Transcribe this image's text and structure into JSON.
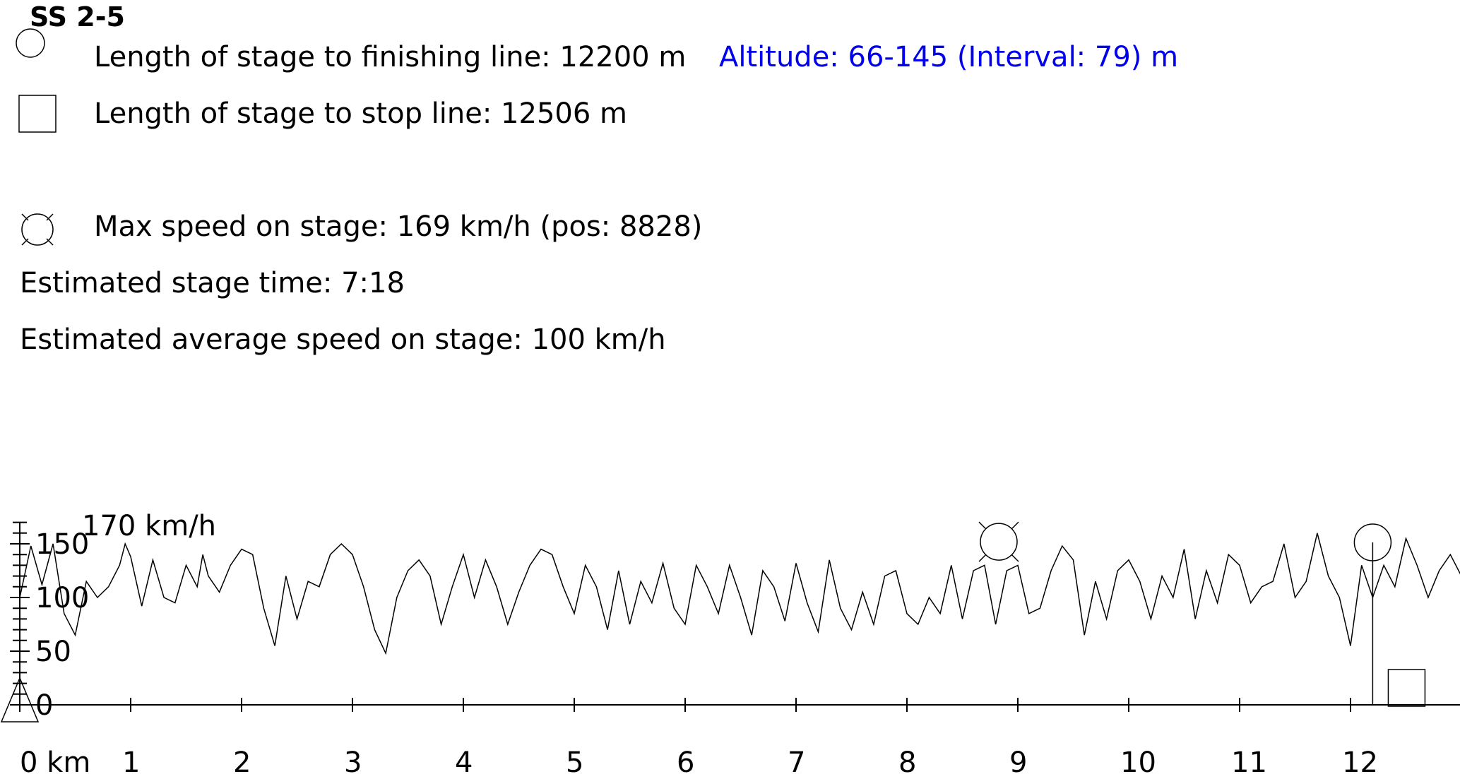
{
  "header": {
    "stage_name": "SS 2-5",
    "finish_length": "Length of stage to finishing line: 12200 m",
    "altitude": "Altitude: 66-145 (Interval: 79) m",
    "stop_length": "Length of stage to stop line: 12506 m",
    "max_speed": "Max speed on stage: 169 km/h (pos: 8828)",
    "stage_time": "Estimated stage time: 7:18",
    "avg_speed": "Estimated average speed on stage: 100 km/h"
  },
  "colors": {
    "altitude_text": "#0000ee",
    "line": "#000000"
  },
  "icons": {
    "finish": "circle-icon",
    "stop": "square-icon",
    "max_speed": "crossed-circle-icon",
    "start": "triangle-icon"
  },
  "chart_data": {
    "type": "line",
    "xlabel": "km",
    "ylabel": "km/h",
    "xlim": [
      0,
      13.2
    ],
    "ylim": [
      0,
      170
    ],
    "y_unit_label": "170 km/h",
    "yticks": [
      0,
      50,
      100,
      150
    ],
    "ytick_labels": [
      "0",
      "50",
      "100",
      "150"
    ],
    "xticks": [
      0,
      1,
      2,
      3,
      4,
      5,
      6,
      7,
      8,
      9,
      10,
      11,
      12
    ],
    "xtick_labels": [
      "0 km",
      "1",
      "2",
      "3",
      "4",
      "5",
      "6",
      "7",
      "8",
      "9",
      "10",
      "11",
      "12"
    ],
    "markers": {
      "start_km": 0,
      "max_speed_km": 8.828,
      "max_speed_kmh": 169,
      "finish_km": 12.2,
      "stop_km": 12.506
    },
    "series": [
      {
        "values": [
          [
            0.0,
            100
          ],
          [
            0.1,
            148
          ],
          [
            0.2,
            112
          ],
          [
            0.3,
            150
          ],
          [
            0.4,
            85
          ],
          [
            0.5,
            65
          ],
          [
            0.6,
            115
          ],
          [
            0.7,
            100
          ],
          [
            0.8,
            110
          ],
          [
            0.9,
            130
          ],
          [
            0.95,
            150
          ],
          [
            1.0,
            138
          ],
          [
            1.1,
            92
          ],
          [
            1.2,
            135
          ],
          [
            1.3,
            100
          ],
          [
            1.4,
            95
          ],
          [
            1.5,
            130
          ],
          [
            1.6,
            110
          ],
          [
            1.65,
            140
          ],
          [
            1.7,
            120
          ],
          [
            1.8,
            105
          ],
          [
            1.9,
            130
          ],
          [
            2.0,
            145
          ],
          [
            2.1,
            140
          ],
          [
            2.2,
            90
          ],
          [
            2.3,
            55
          ],
          [
            2.4,
            120
          ],
          [
            2.5,
            80
          ],
          [
            2.6,
            115
          ],
          [
            2.7,
            110
          ],
          [
            2.8,
            140
          ],
          [
            2.9,
            150
          ],
          [
            3.0,
            140
          ],
          [
            3.1,
            110
          ],
          [
            3.2,
            70
          ],
          [
            3.3,
            48
          ],
          [
            3.4,
            100
          ],
          [
            3.5,
            125
          ],
          [
            3.6,
            135
          ],
          [
            3.7,
            120
          ],
          [
            3.8,
            75
          ],
          [
            3.9,
            110
          ],
          [
            4.0,
            140
          ],
          [
            4.1,
            100
          ],
          [
            4.2,
            135
          ],
          [
            4.3,
            110
          ],
          [
            4.4,
            75
          ],
          [
            4.5,
            105
          ],
          [
            4.6,
            130
          ],
          [
            4.7,
            145
          ],
          [
            4.8,
            140
          ],
          [
            4.9,
            110
          ],
          [
            5.0,
            85
          ],
          [
            5.1,
            130
          ],
          [
            5.2,
            110
          ],
          [
            5.3,
            70
          ],
          [
            5.4,
            125
          ],
          [
            5.5,
            75
          ],
          [
            5.6,
            115
          ],
          [
            5.7,
            95
          ],
          [
            5.8,
            132
          ],
          [
            5.9,
            90
          ],
          [
            6.0,
            75
          ],
          [
            6.1,
            130
          ],
          [
            6.2,
            110
          ],
          [
            6.3,
            85
          ],
          [
            6.4,
            130
          ],
          [
            6.5,
            100
          ],
          [
            6.6,
            65
          ],
          [
            6.7,
            125
          ],
          [
            6.8,
            110
          ],
          [
            6.9,
            78
          ],
          [
            7.0,
            132
          ],
          [
            7.1,
            95
          ],
          [
            7.2,
            68
          ],
          [
            7.3,
            135
          ],
          [
            7.4,
            90
          ],
          [
            7.5,
            70
          ],
          [
            7.6,
            105
          ],
          [
            7.7,
            75
          ],
          [
            7.8,
            120
          ],
          [
            7.9,
            125
          ],
          [
            8.0,
            85
          ],
          [
            8.1,
            75
          ],
          [
            8.2,
            100
          ],
          [
            8.3,
            85
          ],
          [
            8.4,
            130
          ],
          [
            8.5,
            80
          ],
          [
            8.6,
            125
          ],
          [
            8.7,
            130
          ],
          [
            8.8,
            75
          ],
          [
            8.9,
            125
          ],
          [
            9.0,
            130
          ],
          [
            9.1,
            85
          ],
          [
            9.2,
            90
          ],
          [
            9.3,
            125
          ],
          [
            9.4,
            148
          ],
          [
            9.5,
            135
          ],
          [
            9.6,
            65
          ],
          [
            9.7,
            115
          ],
          [
            9.8,
            80
          ],
          [
            9.9,
            125
          ],
          [
            10.0,
            135
          ],
          [
            10.1,
            115
          ],
          [
            10.2,
            80
          ],
          [
            10.3,
            120
          ],
          [
            10.4,
            100
          ],
          [
            10.5,
            145
          ],
          [
            10.6,
            80
          ],
          [
            10.7,
            125
          ],
          [
            10.8,
            95
          ],
          [
            10.9,
            140
          ],
          [
            11.0,
            130
          ],
          [
            11.1,
            95
          ],
          [
            11.2,
            110
          ],
          [
            11.3,
            115
          ],
          [
            11.4,
            150
          ],
          [
            11.5,
            100
          ],
          [
            11.6,
            115
          ],
          [
            11.7,
            160
          ],
          [
            11.8,
            120
          ],
          [
            11.9,
            100
          ],
          [
            12.0,
            55
          ],
          [
            12.1,
            130
          ],
          [
            12.2,
            100
          ],
          [
            12.3,
            130
          ],
          [
            12.4,
            110
          ],
          [
            12.5,
            155
          ],
          [
            12.6,
            130
          ],
          [
            12.7,
            100
          ],
          [
            12.8,
            125
          ],
          [
            12.9,
            140
          ],
          [
            13.0,
            120
          ],
          [
            13.1,
            145
          ]
        ]
      }
    ]
  }
}
